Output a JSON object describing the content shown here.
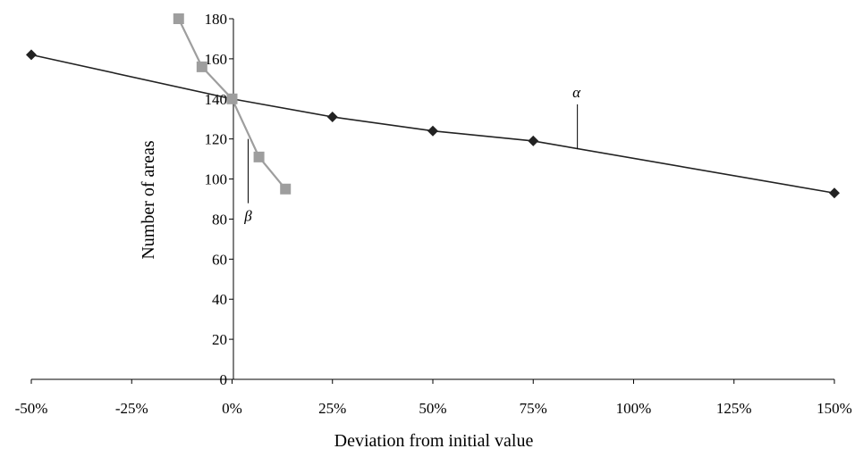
{
  "chart_data": {
    "type": "line",
    "title": "",
    "xlabel": "Deviation from initial value",
    "ylabel": "Number of areas",
    "xlim": [
      -0.5,
      1.5
    ],
    "ylim": [
      0,
      180
    ],
    "x_ticks": [
      -0.5,
      -0.25,
      0,
      0.25,
      0.5,
      0.75,
      1.0,
      1.25,
      1.5
    ],
    "x_tick_labels": [
      "-50%",
      "-25%",
      "0%",
      "25%",
      "50%",
      "75%",
      "100%",
      "125%",
      "150%"
    ],
    "y_ticks": [
      0,
      20,
      40,
      60,
      80,
      100,
      120,
      140,
      160,
      180
    ],
    "y_tick_labels": [
      "0",
      "20",
      "40",
      "60",
      "80",
      "100",
      "120",
      "140",
      "160",
      "180"
    ],
    "grid": false,
    "legend": "none",
    "series": [
      {
        "name": "α",
        "color": "#222222",
        "marker": "diamond",
        "x": [
          -0.5,
          0,
          0.25,
          0.5,
          0.75,
          1.5
        ],
        "y": [
          162,
          140,
          131,
          124,
          119,
          93
        ]
      },
      {
        "name": "β",
        "color": "#9e9e9e",
        "marker": "square",
        "x": [
          -0.133,
          -0.075,
          0,
          0.067,
          0.133
        ],
        "y": [
          180,
          156,
          140,
          111,
          95
        ]
      }
    ],
    "annotations": [
      {
        "text": "α",
        "series": "α",
        "point_x": 0.86,
        "point_y": 115
      },
      {
        "text": "β",
        "series": "β",
        "point_x": 0.04,
        "point_y": 120
      }
    ]
  }
}
